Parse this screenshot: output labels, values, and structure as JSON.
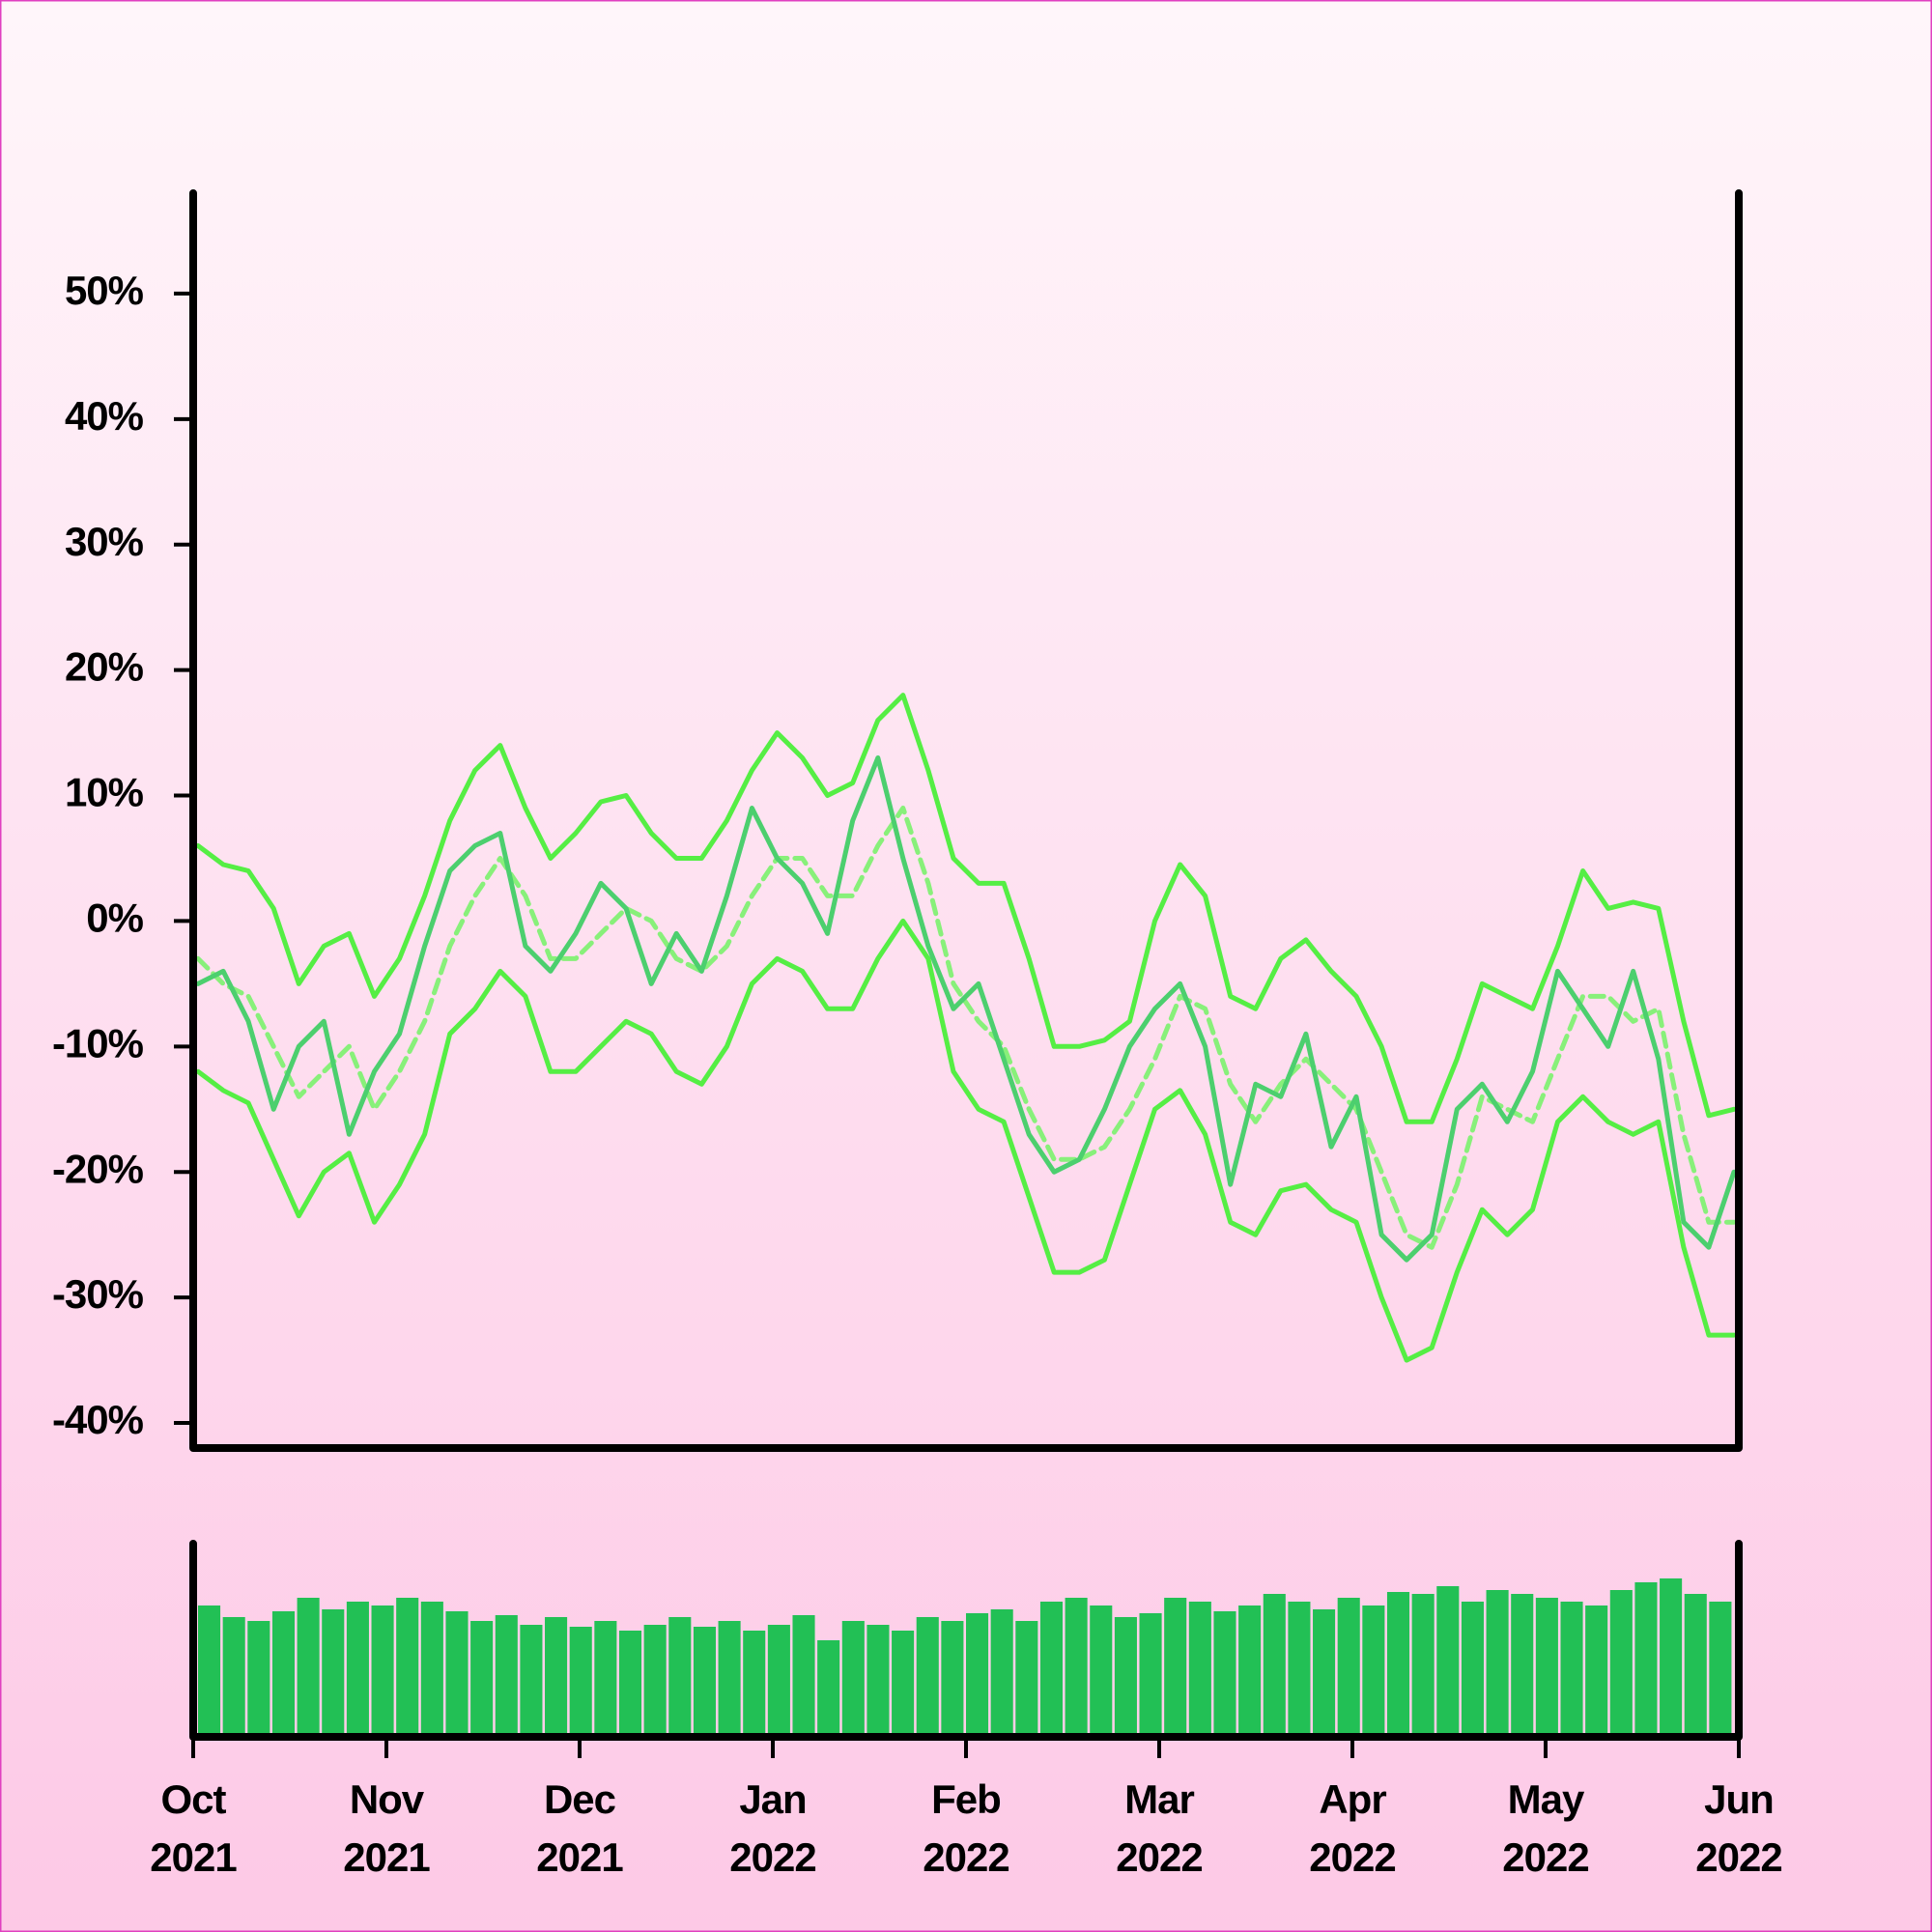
{
  "chart_data": [
    {
      "type": "line",
      "ylim": [
        -42,
        58
      ],
      "yticks": [
        {
          "value": 50,
          "label": "50%"
        },
        {
          "value": 40,
          "label": "40%"
        },
        {
          "value": 30,
          "label": "30%"
        },
        {
          "value": 20,
          "label": "20%"
        },
        {
          "value": 10,
          "label": "10%"
        },
        {
          "value": 0,
          "label": "0%"
        },
        {
          "value": -10,
          "label": "-10%"
        },
        {
          "value": -20,
          "label": "-20%"
        },
        {
          "value": -30,
          "label": "-30%"
        },
        {
          "value": -40,
          "label": "-40%"
        }
      ],
      "series": [
        {
          "color": "#55ee44",
          "dash": false,
          "values": [
            6,
            4.5,
            4,
            1,
            -5,
            -2,
            -1,
            -6,
            -3,
            2,
            8,
            12,
            14,
            9,
            5,
            7,
            9.5,
            10,
            7,
            5,
            5,
            8,
            12,
            15,
            13,
            10,
            11,
            16,
            18,
            12,
            5,
            3,
            3,
            -3,
            -10,
            -10,
            -9.5,
            -8,
            0,
            4.5,
            2,
            -6,
            -7,
            -3,
            -1.5,
            -4,
            -6,
            -10,
            -16,
            -16,
            -11,
            -5,
            -6,
            -7,
            -2,
            4,
            1,
            1.5,
            1,
            -8,
            -15.5,
            -15
          ]
        },
        {
          "color": "#55ee44",
          "dash": false,
          "values": [
            -12,
            -13.5,
            -14.5,
            -19,
            -23.5,
            -20,
            -18.5,
            -24,
            -21,
            -17,
            -9,
            -7,
            -4,
            -6,
            -12,
            -12,
            -10,
            -8,
            -9,
            -12,
            -13,
            -10,
            -5,
            -3,
            -4,
            -7,
            -7,
            -3,
            0,
            -3,
            -12,
            -15,
            -16,
            -22,
            -28,
            -28,
            -27,
            -21,
            -15,
            -13.5,
            -17,
            -24,
            -25,
            -21.5,
            -21,
            -23,
            -24,
            -30,
            -35,
            -34,
            -28,
            -23,
            -25,
            -23,
            -16,
            -14,
            -16,
            -17,
            -16,
            -26,
            -33,
            -33
          ]
        },
        {
          "color": "#88f07a",
          "dash": true,
          "values": [
            -3,
            -5,
            -6,
            -10,
            -14,
            -12,
            -10,
            -15,
            -12,
            -8,
            -2,
            2,
            5,
            2,
            -3,
            -3,
            -1,
            1,
            0,
            -3,
            -4,
            -2,
            2,
            5,
            5,
            2,
            2,
            6,
            9,
            3,
            -5,
            -8,
            -10,
            -15,
            -19,
            -19,
            -18,
            -15,
            -11,
            -6,
            -7,
            -13,
            -16,
            -13,
            -11,
            -13,
            -15,
            -20,
            -25,
            -26,
            -21,
            -14,
            -15,
            -16,
            -11,
            -6,
            -6,
            -8,
            -7,
            -17,
            -24,
            -24
          ]
        },
        {
          "color": "#4ccf6e",
          "dash": false,
          "values": [
            -5,
            -4,
            -8,
            -15,
            -10,
            -8,
            -17,
            -12,
            -9,
            -2,
            4,
            6,
            7,
            -2,
            -4,
            -1,
            3,
            1,
            -5,
            -1,
            -4,
            2,
            9,
            5,
            3,
            -1,
            8,
            13,
            5,
            -2,
            -7,
            -5,
            -11,
            -17,
            -20,
            -19,
            -15,
            -10,
            -7,
            -5,
            -10,
            -21,
            -13,
            -14,
            -9,
            -18,
            -14,
            -25,
            -27,
            -25,
            -15,
            -13,
            -16,
            -12,
            -4,
            -7,
            -10,
            -4,
            -11,
            -24,
            -26,
            -20
          ]
        }
      ]
    },
    {
      "type": "bar",
      "color": "#22c055",
      "ylim": [
        0,
        100
      ],
      "values": [
        68,
        62,
        60,
        65,
        72,
        66,
        70,
        68,
        72,
        70,
        65,
        60,
        63,
        58,
        62,
        57,
        60,
        55,
        58,
        62,
        57,
        60,
        55,
        58,
        63,
        50,
        60,
        58,
        55,
        62,
        60,
        64,
        66,
        60,
        70,
        72,
        68,
        62,
        64,
        72,
        70,
        65,
        68,
        74,
        70,
        66,
        72,
        68,
        75,
        74,
        78,
        70,
        76,
        74,
        72,
        70,
        68,
        76,
        80,
        82,
        74,
        70
      ],
      "xticks": [
        "Oct\n2021",
        "Nov\n2021",
        "Dec\n2021",
        "Jan\n2022",
        "Feb\n2022",
        "Mar\n2022",
        "Apr\n2022",
        "May\n2022",
        "Jun\n2022"
      ]
    }
  ]
}
